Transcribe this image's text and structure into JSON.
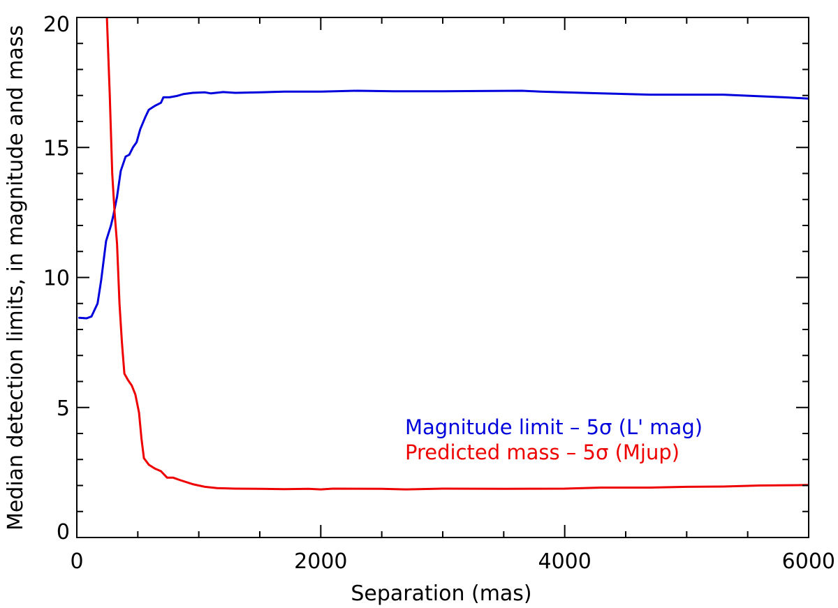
{
  "chart_data": {
    "type": "line",
    "title": "",
    "xlabel": "Separation (mas)",
    "ylabel": "Median detection limits, in magnitude and mass",
    "xlim": [
      0,
      6000
    ],
    "ylim": [
      0,
      20
    ],
    "x_ticks": [
      0,
      2000,
      4000,
      6000
    ],
    "x_tick_labels": [
      "0",
      "2000",
      "4000",
      "6000"
    ],
    "x_minor_step": 500,
    "y_ticks": [
      0,
      5,
      10,
      15,
      20
    ],
    "y_tick_labels": [
      "0",
      "5",
      "10",
      "15",
      "20"
    ],
    "y_minor_step": 1,
    "grid": false,
    "legend_position": "lower-right",
    "series": [
      {
        "name": "Magnitude limit – 5σ (L' mag)",
        "color": "#0000dd",
        "points": [
          [
            20,
            8.45
          ],
          [
            80,
            8.43
          ],
          [
            120,
            8.5
          ],
          [
            150,
            8.8
          ],
          [
            170,
            9.0
          ],
          [
            200,
            9.9
          ],
          [
            240,
            11.4
          ],
          [
            280,
            12.0
          ],
          [
            300,
            12.4
          ],
          [
            330,
            13.1
          ],
          [
            360,
            14.1
          ],
          [
            400,
            14.65
          ],
          [
            430,
            14.72
          ],
          [
            460,
            15.0
          ],
          [
            490,
            15.2
          ],
          [
            520,
            15.7
          ],
          [
            560,
            16.15
          ],
          [
            590,
            16.45
          ],
          [
            640,
            16.6
          ],
          [
            690,
            16.72
          ],
          [
            710,
            16.93
          ],
          [
            760,
            16.93
          ],
          [
            820,
            16.98
          ],
          [
            870,
            17.05
          ],
          [
            950,
            17.1
          ],
          [
            1050,
            17.12
          ],
          [
            1100,
            17.08
          ],
          [
            1200,
            17.13
          ],
          [
            1300,
            17.1
          ],
          [
            1500,
            17.12
          ],
          [
            1700,
            17.15
          ],
          [
            2000,
            17.15
          ],
          [
            2300,
            17.18
          ],
          [
            2600,
            17.16
          ],
          [
            3000,
            17.16
          ],
          [
            3300,
            17.17
          ],
          [
            3650,
            17.18
          ],
          [
            3800,
            17.15
          ],
          [
            4000,
            17.12
          ],
          [
            4300,
            17.08
          ],
          [
            4700,
            17.03
          ],
          [
            5000,
            17.03
          ],
          [
            5300,
            17.03
          ],
          [
            5600,
            16.97
          ],
          [
            5800,
            16.93
          ],
          [
            6000,
            16.88
          ]
        ]
      },
      {
        "name": "Predicted mass – 5σ (Mjup)",
        "color": "#ee0000",
        "points": [
          [
            243,
            20.5
          ],
          [
            270,
            17.0
          ],
          [
            290,
            14.0
          ],
          [
            310,
            12.5
          ],
          [
            330,
            11.3
          ],
          [
            350,
            9.0
          ],
          [
            370,
            7.5
          ],
          [
            390,
            6.3
          ],
          [
            420,
            6.05
          ],
          [
            450,
            5.85
          ],
          [
            480,
            5.5
          ],
          [
            510,
            4.8
          ],
          [
            530,
            3.8
          ],
          [
            550,
            3.05
          ],
          [
            590,
            2.8
          ],
          [
            640,
            2.65
          ],
          [
            690,
            2.55
          ],
          [
            740,
            2.3
          ],
          [
            790,
            2.3
          ],
          [
            850,
            2.2
          ],
          [
            950,
            2.05
          ],
          [
            1050,
            1.95
          ],
          [
            1150,
            1.9
          ],
          [
            1300,
            1.88
          ],
          [
            1500,
            1.87
          ],
          [
            1700,
            1.86
          ],
          [
            1900,
            1.87
          ],
          [
            2000,
            1.85
          ],
          [
            2100,
            1.88
          ],
          [
            2500,
            1.87
          ],
          [
            2700,
            1.85
          ],
          [
            3000,
            1.88
          ],
          [
            3500,
            1.87
          ],
          [
            4000,
            1.88
          ],
          [
            4300,
            1.92
          ],
          [
            4700,
            1.92
          ],
          [
            5000,
            1.95
          ],
          [
            5300,
            1.96
          ],
          [
            5600,
            2.0
          ],
          [
            6000,
            2.02
          ]
        ]
      }
    ]
  }
}
